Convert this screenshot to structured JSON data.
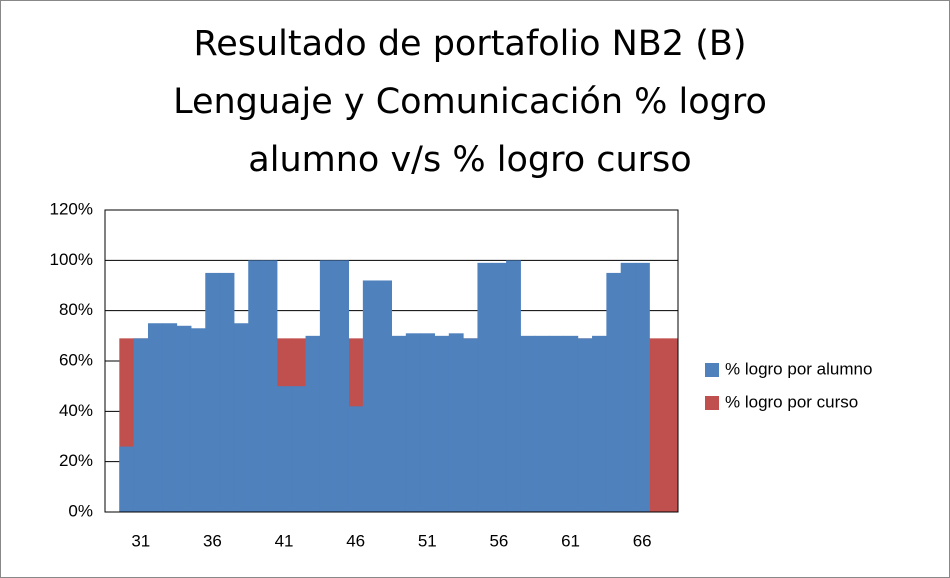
{
  "chart_data": {
    "type": "bar",
    "title": [
      "Resultado de portafolio NB2 (B)",
      "Lenguaje y Comunicación % logro",
      "alumno v/s % logro curso"
    ],
    "categories": [
      null,
      null,
      "31",
      null,
      null,
      null,
      null,
      "36",
      null,
      null,
      null,
      null,
      "41",
      null,
      null,
      null,
      null,
      "46",
      null,
      null,
      null,
      null,
      "51",
      null,
      null,
      null,
      null,
      "56",
      null,
      null,
      null,
      null,
      "61",
      null,
      null,
      null,
      null,
      "66",
      null,
      null
    ],
    "series": [
      {
        "name": "% logro por curso",
        "color": "#c0504d",
        "values": [
          0,
          69,
          69,
          69,
          69,
          69,
          69,
          69,
          69,
          69,
          69,
          69,
          69,
          69,
          69,
          69,
          69,
          69,
          69,
          69,
          69,
          69,
          69,
          69,
          69,
          69,
          69,
          69,
          69,
          69,
          69,
          69,
          69,
          69,
          69,
          69,
          69,
          69,
          69,
          69
        ]
      },
      {
        "name": "% logro por alumno",
        "color": "#4f81bd",
        "values": [
          0,
          26,
          69,
          75,
          75,
          74,
          73,
          95,
          95,
          75,
          100,
          100,
          50,
          50,
          70,
          100,
          100,
          42,
          92,
          92,
          70,
          71,
          71,
          70,
          71,
          69,
          99,
          99,
          100,
          70,
          70,
          70,
          70,
          69,
          70,
          95,
          99,
          99,
          0,
          0
        ]
      }
    ],
    "legend_order": [
      1,
      0
    ],
    "ylim": [
      0,
      120
    ],
    "yticks": [
      {
        "value": 0,
        "label": "0%"
      },
      {
        "value": 20,
        "label": "20%"
      },
      {
        "value": 40,
        "label": "40%"
      },
      {
        "value": 60,
        "label": "60%"
      },
      {
        "value": 80,
        "label": "80%"
      },
      {
        "value": 100,
        "label": "100%"
      },
      {
        "value": 120,
        "label": "120%"
      }
    ],
    "grid": true
  }
}
